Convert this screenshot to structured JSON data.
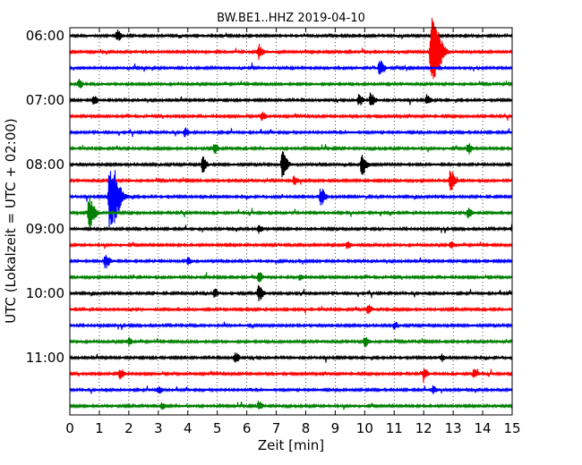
{
  "chart_data": {
    "type": "line",
    "title": "BW.BE1..HHZ 2019-04-10",
    "xlabel": "Zeit  [min]",
    "ylabel": "UTC (Lokalzeit = UTC + 02:00)",
    "xlim": [
      0,
      15
    ],
    "x_ticks": [
      "0",
      "1",
      "2",
      "3",
      "4",
      "5",
      "6",
      "7",
      "8",
      "9",
      "10",
      "11",
      "12",
      "13",
      "14",
      "15"
    ],
    "y_ticks": [
      "06:00",
      "07:00",
      "08:00",
      "09:00",
      "10:00",
      "11:00"
    ],
    "grid": "vertical dotted",
    "track_colors": [
      "#000000",
      "#ff0000",
      "#0000ff",
      "#008000"
    ],
    "tracks": [
      {
        "start": "06:00",
        "events": [
          [
            1.6,
            6
          ]
        ]
      },
      {
        "start": "06:15",
        "events": [
          [
            6.4,
            8
          ],
          [
            12.25,
            40
          ]
        ]
      },
      {
        "start": "06:30",
        "events": [
          [
            10.5,
            10
          ]
        ]
      },
      {
        "start": "06:45",
        "events": [
          [
            0.3,
            5
          ]
        ]
      },
      {
        "start": "07:00",
        "events": [
          [
            0.8,
            6
          ],
          [
            9.8,
            6
          ],
          [
            10.2,
            8
          ],
          [
            12.1,
            6
          ]
        ]
      },
      {
        "start": "07:15",
        "events": [
          [
            6.5,
            5
          ]
        ]
      },
      {
        "start": "07:30",
        "events": [
          [
            3.9,
            5
          ]
        ]
      },
      {
        "start": "07:45",
        "events": [
          [
            4.9,
            6
          ],
          [
            13.5,
            6
          ]
        ]
      },
      {
        "start": "08:00",
        "events": [
          [
            4.5,
            8
          ],
          [
            7.2,
            14
          ],
          [
            9.9,
            12
          ]
        ]
      },
      {
        "start": "08:15",
        "events": [
          [
            7.6,
            5
          ],
          [
            12.9,
            12
          ]
        ]
      },
      {
        "start": "08:30",
        "events": [
          [
            1.35,
            40
          ],
          [
            8.5,
            10
          ]
        ]
      },
      {
        "start": "08:45",
        "events": [
          [
            0.65,
            18
          ],
          [
            13.5,
            5
          ]
        ]
      },
      {
        "start": "09:00",
        "events": [
          [
            6.4,
            5
          ],
          [
            15.0,
            5
          ]
        ]
      },
      {
        "start": "09:15",
        "events": [
          [
            9.4,
            4
          ],
          [
            12.9,
            4
          ]
        ]
      },
      {
        "start": "09:30",
        "events": [
          [
            1.2,
            8
          ],
          [
            4.0,
            4
          ]
        ]
      },
      {
        "start": "09:45",
        "events": [
          [
            6.4,
            6
          ],
          [
            7.8,
            4
          ]
        ]
      },
      {
        "start": "10:00",
        "events": [
          [
            4.9,
            5
          ],
          [
            6.4,
            9
          ]
        ]
      },
      {
        "start": "10:15",
        "events": [
          [
            10.1,
            5
          ]
        ]
      },
      {
        "start": "10:30",
        "events": [
          [
            11.0,
            4
          ]
        ]
      },
      {
        "start": "10:45",
        "events": [
          [
            2.0,
            4
          ],
          [
            10.0,
            6
          ]
        ]
      },
      {
        "start": "11:00",
        "events": [
          [
            5.6,
            6
          ],
          [
            12.6,
            4
          ]
        ]
      },
      {
        "start": "11:15",
        "events": [
          [
            1.7,
            5
          ],
          [
            12.0,
            6
          ],
          [
            13.7,
            5
          ]
        ]
      },
      {
        "start": "11:30",
        "events": [
          [
            3.0,
            4
          ],
          [
            12.3,
            4
          ]
        ]
      },
      {
        "start": "11:45",
        "events": [
          [
            3.1,
            4
          ],
          [
            6.4,
            5
          ]
        ]
      }
    ]
  }
}
